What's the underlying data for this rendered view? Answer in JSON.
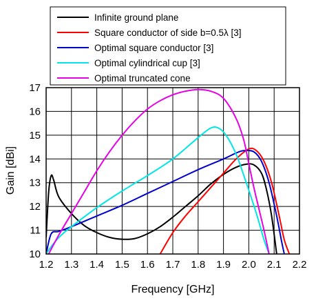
{
  "chart_data": {
    "type": "line",
    "xlabel": "Frequency [GHz]",
    "ylabel": "Gain [dBi]",
    "xlim": [
      1.2,
      2.2
    ],
    "ylim": [
      10,
      17
    ],
    "x_ticks": [
      "1.2",
      "1.3",
      "1.4",
      "1.5",
      "1.6",
      "1.7",
      "1.8",
      "1.9",
      "2.0",
      "2.1",
      "2.2"
    ],
    "y_ticks": [
      "10",
      "11",
      "12",
      "13",
      "14",
      "15",
      "16",
      "17"
    ],
    "grid": true,
    "legend_position": "top",
    "series": [
      {
        "name": "Infinite ground plane",
        "color": "#000000",
        "points": [
          [
            1.2,
            10.7
          ],
          [
            1.21,
            12.6
          ],
          [
            1.22,
            13.3
          ],
          [
            1.23,
            13.1
          ],
          [
            1.25,
            12.4
          ],
          [
            1.3,
            11.7
          ],
          [
            1.35,
            11.2
          ],
          [
            1.4,
            10.9
          ],
          [
            1.45,
            10.7
          ],
          [
            1.5,
            10.62
          ],
          [
            1.55,
            10.65
          ],
          [
            1.6,
            10.85
          ],
          [
            1.65,
            11.15
          ],
          [
            1.7,
            11.55
          ],
          [
            1.75,
            12.0
          ],
          [
            1.8,
            12.45
          ],
          [
            1.85,
            12.95
          ],
          [
            1.9,
            13.35
          ],
          [
            1.95,
            13.65
          ],
          [
            1.99,
            13.78
          ],
          [
            2.02,
            13.75
          ],
          [
            2.05,
            13.4
          ],
          [
            2.07,
            12.7
          ],
          [
            2.09,
            11.6
          ],
          [
            2.11,
            10.0
          ]
        ]
      },
      {
        "name": "Square conductor of side b=0.5λ [3]",
        "color": "#ff0000",
        "points": [
          [
            1.65,
            10.0
          ],
          [
            1.7,
            10.9
          ],
          [
            1.75,
            11.6
          ],
          [
            1.8,
            12.2
          ],
          [
            1.85,
            12.8
          ],
          [
            1.9,
            13.4
          ],
          [
            1.95,
            14.0
          ],
          [
            2.0,
            14.42
          ],
          [
            2.03,
            14.35
          ],
          [
            2.06,
            13.9
          ],
          [
            2.09,
            13.0
          ],
          [
            2.12,
            11.6
          ],
          [
            2.14,
            10.6
          ],
          [
            2.16,
            10.0
          ]
        ]
      },
      {
        "name": "Optimal square conductor [3]",
        "color": "#0000cc",
        "points": [
          [
            1.2,
            10.0
          ],
          [
            1.22,
            10.85
          ],
          [
            1.25,
            10.95
          ],
          [
            1.3,
            11.15
          ],
          [
            1.4,
            11.6
          ],
          [
            1.5,
            12.05
          ],
          [
            1.6,
            12.55
          ],
          [
            1.7,
            13.05
          ],
          [
            1.8,
            13.55
          ],
          [
            1.9,
            14.0
          ],
          [
            1.95,
            14.25
          ],
          [
            1.98,
            14.35
          ],
          [
            2.02,
            14.3
          ],
          [
            2.05,
            13.9
          ],
          [
            2.08,
            13.0
          ],
          [
            2.11,
            11.6
          ],
          [
            2.13,
            10.5
          ],
          [
            2.14,
            10.0
          ]
        ]
      },
      {
        "name": "Optimal cylindrical cup [3]",
        "color": "#00e5e5",
        "points": [
          [
            1.2,
            10.0
          ],
          [
            1.23,
            10.45
          ],
          [
            1.26,
            10.8
          ],
          [
            1.3,
            11.15
          ],
          [
            1.4,
            11.95
          ],
          [
            1.5,
            12.65
          ],
          [
            1.6,
            13.3
          ],
          [
            1.7,
            14.0
          ],
          [
            1.8,
            14.9
          ],
          [
            1.85,
            15.3
          ],
          [
            1.88,
            15.3
          ],
          [
            1.91,
            15.0
          ],
          [
            1.95,
            14.2
          ],
          [
            1.99,
            13.0
          ],
          [
            2.03,
            11.7
          ],
          [
            2.06,
            10.6
          ],
          [
            2.08,
            10.0
          ]
        ]
      },
      {
        "name": "Optimal truncated cone",
        "color": "#e600e6",
        "points": [
          [
            1.21,
            10.0
          ],
          [
            1.25,
            10.8
          ],
          [
            1.3,
            11.7
          ],
          [
            1.35,
            12.6
          ],
          [
            1.4,
            13.5
          ],
          [
            1.45,
            14.3
          ],
          [
            1.5,
            15.0
          ],
          [
            1.55,
            15.6
          ],
          [
            1.6,
            16.1
          ],
          [
            1.65,
            16.45
          ],
          [
            1.7,
            16.7
          ],
          [
            1.75,
            16.85
          ],
          [
            1.8,
            16.92
          ],
          [
            1.85,
            16.85
          ],
          [
            1.9,
            16.55
          ],
          [
            1.95,
            15.7
          ],
          [
            1.98,
            14.8
          ],
          [
            2.0,
            13.8
          ],
          [
            2.02,
            12.8
          ],
          [
            2.04,
            11.9
          ],
          [
            2.06,
            11.0
          ],
          [
            2.08,
            10.0
          ]
        ]
      }
    ]
  }
}
